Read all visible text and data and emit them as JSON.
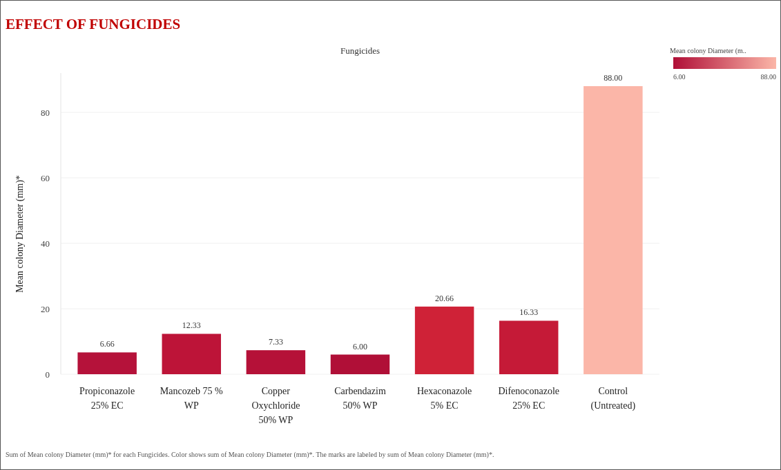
{
  "chart_data": {
    "type": "bar",
    "title": "EFFECT OF FUNGICIDES",
    "xlabel": "Fungicides",
    "ylabel": "Mean colony Diameter (mm)*",
    "clabel": "Mean colony Diameter (m..",
    "categories": [
      "Propiconazole 25% EC",
      "Mancozeb 75 % WP",
      "Copper Oxychloride 50% WP",
      "Carbendazim 50% WP",
      "Hexaconazole 5% EC",
      "Difenoconazole 25% EC",
      "Control (Untreated)"
    ],
    "values": [
      6.66,
      12.33,
      7.33,
      6.0,
      20.66,
      16.33,
      88.0
    ],
    "value_labels": [
      "6.66",
      "12.33",
      "7.33",
      "6.00",
      "20.66",
      "16.33",
      "88.00"
    ],
    "colors": [
      "#b5123a",
      "#bd1438",
      "#b51138",
      "#b00f37",
      "#cf2237",
      "#c51a37",
      "#fbb6a8"
    ],
    "clim": [
      6,
      88
    ],
    "cticks": [
      {
        "value": 6,
        "label": "6.00"
      },
      {
        "value": 88,
        "label": "88.00"
      }
    ],
    "ylim": [
      0,
      92
    ],
    "yticks": [
      0,
      20,
      40,
      60,
      80
    ],
    "grid": "y",
    "annotations": [
      "Sum of Mean colony Diameter (mm)* for each Fungicides.  Color shows sum of Mean colony Diameter (mm)*.  The marks are labeled by sum of Mean colony Diameter (mm)*."
    ]
  }
}
